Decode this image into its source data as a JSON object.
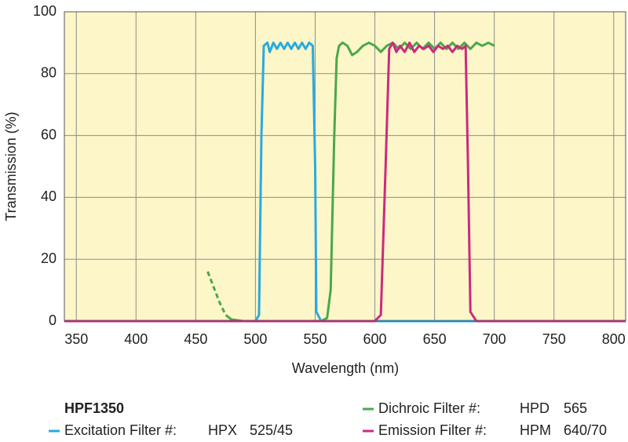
{
  "chart_data": {
    "type": "line",
    "xlabel": "Wavelength (nm)",
    "ylabel": "Transmission (%)",
    "xlim": [
      340,
      810
    ],
    "ylim": [
      0,
      100
    ],
    "xticks": [
      350,
      400,
      450,
      500,
      550,
      600,
      650,
      700,
      750,
      800
    ],
    "yticks": [
      0,
      20,
      40,
      60,
      80,
      100
    ],
    "grid": true,
    "legend_title": "HPF1350",
    "series": [
      {
        "name": "Excitation Filter #:",
        "part": "HPX",
        "spec": "525/45",
        "color": "#29aae1",
        "x": [
          340,
          500,
          503,
          505,
          507,
          510,
          512,
          515,
          518,
          521,
          524,
          527,
          530,
          533,
          536,
          539,
          542,
          545,
          548,
          550,
          551,
          555,
          810
        ],
        "values": [
          0,
          0,
          2,
          60,
          89,
          90,
          87,
          90,
          88,
          90,
          88,
          90,
          88,
          90,
          88,
          90,
          88,
          90,
          89,
          50,
          3,
          0,
          0
        ]
      },
      {
        "name": "Dichroic Filter #:",
        "part": "HPD",
        "spec": "565",
        "color": "#4aa84a",
        "dashed_x": [
          460,
          480
        ],
        "x": [
          460,
          465,
          470,
          475,
          480,
          490,
          555,
          560,
          563,
          566,
          568,
          570,
          573,
          577,
          581,
          585,
          590,
          595,
          600,
          605,
          610,
          615,
          620,
          625,
          630,
          635,
          640,
          645,
          650,
          655,
          660,
          665,
          670,
          675,
          680,
          685,
          690,
          695,
          700
        ],
        "values": [
          16,
          11,
          6,
          2,
          0.5,
          0,
          0,
          1,
          10,
          60,
          85,
          89,
          90,
          89,
          86,
          87,
          89,
          90,
          89,
          87,
          89,
          90,
          88,
          90,
          88,
          90,
          88,
          90,
          88,
          90,
          88,
          90,
          88,
          90,
          88,
          90,
          89,
          90,
          89
        ]
      },
      {
        "name": "Emission Filter #:",
        "part": "HPM",
        "spec": "640/70",
        "color": "#cc2a7f",
        "x": [
          340,
          600,
          605,
          609,
          612,
          615,
          618,
          621,
          625,
          629,
          633,
          637,
          641,
          645,
          649,
          653,
          657,
          661,
          665,
          669,
          673,
          676,
          678,
          680,
          685,
          810
        ],
        "values": [
          0,
          0,
          2,
          50,
          88,
          90,
          87,
          89,
          87,
          90,
          87,
          89,
          88,
          89,
          87,
          89,
          88,
          89,
          87,
          89,
          88,
          89,
          50,
          3,
          0,
          0
        ]
      }
    ]
  }
}
